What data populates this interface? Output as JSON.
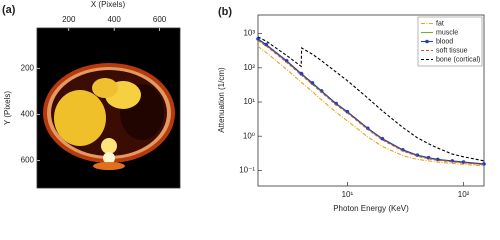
{
  "chart_data": [
    {
      "type": "image",
      "panel_label": "(a)",
      "xlabel": "X (Pixels)",
      "ylabel": "Y (Pixels)",
      "xlim": [
        60,
        690
      ],
      "ylim": [
        25,
        720
      ],
      "xticks": [
        200,
        400,
        600
      ],
      "yticks": [
        200,
        400,
        600
      ]
    },
    {
      "type": "line",
      "panel_label": "(b)",
      "xlabel": "Photon Energy (KeV)",
      "ylabel": "Attenuation (1/cm)",
      "log_x": true,
      "log_y": true,
      "legend": "upper right",
      "xlim": [
        1.7,
        150
      ],
      "ylim": [
        0.035,
        3500
      ],
      "xticks": [
        {
          "value": 10,
          "label": "10¹"
        },
        {
          "value": 100,
          "label": "10²"
        }
      ],
      "yticks": [
        {
          "value": 0.1,
          "label": "10⁻¹"
        },
        {
          "value": 1,
          "label": "10⁰"
        },
        {
          "value": 10,
          "label": "10¹"
        },
        {
          "value": 100,
          "label": "10²"
        },
        {
          "value": 1000,
          "label": "10³"
        }
      ],
      "x": [
        1.7,
        2,
        3,
        4,
        4.04,
        5,
        6,
        8,
        10,
        15,
        20,
        30,
        40,
        50,
        60,
        80,
        100,
        150
      ],
      "series": [
        {
          "name": "fat",
          "color": "#e8a317",
          "style": "dashdot",
          "values": [
            420,
            280,
            90,
            38,
            37,
            20,
            11.5,
            5,
            2.8,
            0.95,
            0.5,
            0.27,
            0.21,
            0.19,
            0.175,
            0.16,
            0.15,
            0.135
          ]
        },
        {
          "name": "muscle",
          "color": "#77ac30",
          "style": "solid",
          "values": [
            660,
            455,
            152,
            65,
            63,
            34,
            20,
            8.6,
            5,
            1.62,
            0.81,
            0.38,
            0.27,
            0.225,
            0.2,
            0.182,
            0.168,
            0.15
          ]
        },
        {
          "name": "blood",
          "color": "#1f3fbf",
          "style": "solid",
          "marker": "circle",
          "values": [
            700,
            480,
            160,
            68,
            66,
            36,
            21,
            9,
            5.2,
            1.7,
            0.85,
            0.4,
            0.28,
            0.235,
            0.21,
            0.19,
            0.175,
            0.155
          ]
        },
        {
          "name": "soft tissue",
          "color": "#d95319",
          "style": "dashed",
          "values": [
            630,
            435,
            145,
            62,
            60,
            32.5,
            19,
            8.2,
            4.8,
            1.56,
            0.78,
            0.37,
            0.26,
            0.22,
            0.197,
            0.178,
            0.165,
            0.148
          ]
        },
        {
          "name": "bone (cortical)",
          "color": "#000000",
          "style": "dashed",
          "values": [
            800,
            600,
            230,
            110,
            380,
            250,
            160,
            75,
            42,
            13,
            5.5,
            1.8,
            0.9,
            0.6,
            0.45,
            0.3,
            0.25,
            0.19
          ]
        }
      ]
    }
  ]
}
